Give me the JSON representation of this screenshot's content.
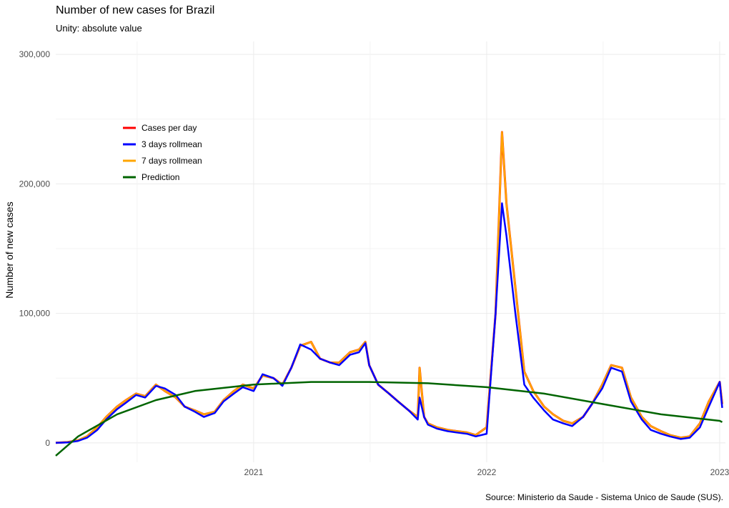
{
  "chart_data": {
    "type": "line",
    "title": "Number of new cases for Brazil",
    "subtitle": "Unity: absolute value",
    "xlabel": "",
    "ylabel": "Number of new cases",
    "caption": "Source: Ministerio da Saude -  Sistema Unico de Saude (SUS).",
    "x_range": [
      "2020-02-26",
      "2023-01-10"
    ],
    "ylim": [
      -15000,
      310000
    ],
    "x_ticks": [
      {
        "date": "2021-01-01",
        "label": "2021"
      },
      {
        "date": "2022-01-01",
        "label": "2022"
      },
      {
        "date": "2023-01-01",
        "label": "2023"
      }
    ],
    "y_ticks": [
      {
        "value": 0,
        "label": "0"
      },
      {
        "value": 100000,
        "label": "100,000"
      },
      {
        "value": 200000,
        "label": "200,000"
      },
      {
        "value": 300000,
        "label": "300,000"
      }
    ],
    "grid": true,
    "legend_position": "top-left",
    "series": [
      {
        "name": "Cases per day",
        "color": "#ff0000",
        "x": [
          "2020-02-26",
          "2020-03-15",
          "2020-04-01",
          "2020-04-15",
          "2020-05-01",
          "2020-05-15",
          "2020-06-01",
          "2020-06-15",
          "2020-07-01",
          "2020-07-15",
          "2020-08-01",
          "2020-08-15",
          "2020-09-01",
          "2020-09-15",
          "2020-10-01",
          "2020-10-15",
          "2020-11-01",
          "2020-11-15",
          "2020-12-01",
          "2020-12-15",
          "2021-01-01",
          "2021-01-15",
          "2021-02-01",
          "2021-02-15",
          "2021-03-01",
          "2021-03-15",
          "2021-04-01",
          "2021-04-15",
          "2021-05-01",
          "2021-05-15",
          "2021-06-01",
          "2021-06-15",
          "2021-06-25",
          "2021-07-01",
          "2021-07-15",
          "2021-08-01",
          "2021-08-15",
          "2021-09-01",
          "2021-09-15",
          "2021-09-18",
          "2021-09-25",
          "2021-10-01",
          "2021-10-15",
          "2021-11-01",
          "2021-11-15",
          "2021-12-01",
          "2021-12-15",
          "2022-01-01",
          "2022-01-15",
          "2022-01-25",
          "2022-02-01",
          "2022-02-15",
          "2022-03-01",
          "2022-03-15",
          "2022-04-01",
          "2022-04-15",
          "2022-05-01",
          "2022-05-15",
          "2022-06-01",
          "2022-06-15",
          "2022-07-01",
          "2022-07-15",
          "2022-08-01",
          "2022-08-15",
          "2022-09-01",
          "2022-09-15",
          "2022-10-01",
          "2022-10-15",
          "2022-11-01",
          "2022-11-15",
          "2022-12-01",
          "2022-12-15",
          "2023-01-01",
          "2023-01-05"
        ],
        "values": [
          0,
          500,
          2000,
          5000,
          12000,
          20000,
          28000,
          33000,
          38000,
          36000,
          45000,
          40000,
          35000,
          28000,
          25000,
          22000,
          24000,
          33000,
          40000,
          45000,
          42000,
          52000,
          50000,
          45000,
          58000,
          75000,
          78000,
          65000,
          62000,
          62000,
          70000,
          72000,
          78000,
          60000,
          45000,
          38000,
          32000,
          25000,
          20000,
          58000,
          20000,
          15000,
          12000,
          10000,
          9000,
          8000,
          6000,
          12000,
          100000,
          240000,
          185000,
          120000,
          55000,
          40000,
          28000,
          22000,
          17000,
          15000,
          20000,
          30000,
          45000,
          60000,
          58000,
          35000,
          20000,
          13000,
          9000,
          6000,
          4000,
          5000,
          15000,
          32000,
          47000,
          30000
        ]
      },
      {
        "name": "3 days rollmean",
        "color": "#0000ff",
        "x": [
          "2020-02-26",
          "2020-03-15",
          "2020-04-01",
          "2020-04-15",
          "2020-05-01",
          "2020-05-15",
          "2020-06-01",
          "2020-06-15",
          "2020-07-01",
          "2020-07-15",
          "2020-08-01",
          "2020-08-15",
          "2020-09-01",
          "2020-09-15",
          "2020-10-01",
          "2020-10-15",
          "2020-11-01",
          "2020-11-15",
          "2020-12-01",
          "2020-12-15",
          "2021-01-01",
          "2021-01-15",
          "2021-02-01",
          "2021-02-15",
          "2021-03-01",
          "2021-03-15",
          "2021-04-01",
          "2021-04-15",
          "2021-05-01",
          "2021-05-15",
          "2021-06-01",
          "2021-06-15",
          "2021-06-25",
          "2021-07-01",
          "2021-07-15",
          "2021-08-01",
          "2021-08-15",
          "2021-09-01",
          "2021-09-15",
          "2021-09-18",
          "2021-09-25",
          "2021-10-01",
          "2021-10-15",
          "2021-11-01",
          "2021-11-15",
          "2021-12-01",
          "2021-12-15",
          "2022-01-01",
          "2022-01-15",
          "2022-01-25",
          "2022-02-01",
          "2022-02-15",
          "2022-03-01",
          "2022-03-15",
          "2022-04-01",
          "2022-04-15",
          "2022-05-01",
          "2022-05-15",
          "2022-06-01",
          "2022-06-15",
          "2022-07-01",
          "2022-07-15",
          "2022-08-01",
          "2022-08-15",
          "2022-09-01",
          "2022-09-15",
          "2022-10-01",
          "2022-10-15",
          "2022-11-01",
          "2022-11-15",
          "2022-12-01",
          "2022-12-15",
          "2023-01-01",
          "2023-01-05"
        ],
        "values": [
          0,
          300,
          1500,
          4000,
          10000,
          18000,
          26000,
          31000,
          37000,
          35000,
          44000,
          42000,
          37000,
          28000,
          24000,
          20000,
          23000,
          32000,
          38000,
          43000,
          40000,
          53000,
          50000,
          44000,
          58000,
          76000,
          72000,
          65000,
          62000,
          60000,
          68000,
          70000,
          77000,
          60000,
          45000,
          38000,
          32000,
          25000,
          18000,
          35000,
          20000,
          14000,
          11000,
          9000,
          8000,
          7000,
          5000,
          7000,
          100000,
          185000,
          160000,
          100000,
          45000,
          35000,
          25000,
          18000,
          15000,
          13000,
          20000,
          30000,
          42000,
          58000,
          55000,
          32000,
          18000,
          10000,
          7000,
          5000,
          3000,
          4000,
          12000,
          28000,
          47000,
          27000
        ]
      },
      {
        "name": "7 days rollmean",
        "color": "#ffa500",
        "x": [
          "2020-02-26",
          "2020-03-15",
          "2020-04-01",
          "2020-04-15",
          "2020-05-01",
          "2020-05-15",
          "2020-06-01",
          "2020-06-15",
          "2020-07-01",
          "2020-07-15",
          "2020-08-01",
          "2020-08-15",
          "2020-09-01",
          "2020-09-15",
          "2020-10-01",
          "2020-10-15",
          "2020-11-01",
          "2020-11-15",
          "2020-12-01",
          "2020-12-15",
          "2021-01-01",
          "2021-01-15",
          "2021-02-01",
          "2021-02-15",
          "2021-03-01",
          "2021-03-15",
          "2021-04-01",
          "2021-04-15",
          "2021-05-01",
          "2021-05-15",
          "2021-06-01",
          "2021-06-15",
          "2021-06-25",
          "2021-07-01",
          "2021-07-15",
          "2021-08-01",
          "2021-08-15",
          "2021-09-01",
          "2021-09-15",
          "2021-09-18",
          "2021-09-25",
          "2021-10-01",
          "2021-10-15",
          "2021-11-01",
          "2021-11-15",
          "2021-12-01",
          "2021-12-15",
          "2022-01-01",
          "2022-01-15",
          "2022-01-25",
          "2022-02-01",
          "2022-02-15",
          "2022-03-01",
          "2022-03-15",
          "2022-04-01",
          "2022-04-15",
          "2022-05-01",
          "2022-05-15",
          "2022-06-01",
          "2022-06-15",
          "2022-07-01",
          "2022-07-15",
          "2022-08-01",
          "2022-08-15",
          "2022-09-01",
          "2022-09-15",
          "2022-10-01",
          "2022-10-15",
          "2022-11-01",
          "2022-11-15",
          "2022-12-01",
          "2022-12-15",
          "2023-01-01",
          "2023-01-05"
        ],
        "values": [
          0,
          500,
          2000,
          5000,
          12000,
          20000,
          28000,
          33000,
          38000,
          36000,
          45000,
          40000,
          35000,
          28000,
          25000,
          22000,
          24000,
          33000,
          40000,
          45000,
          42000,
          52000,
          50000,
          45000,
          58000,
          75000,
          78000,
          65000,
          62000,
          62000,
          70000,
          72000,
          78000,
          60000,
          45000,
          38000,
          32000,
          25000,
          20000,
          58000,
          20000,
          15000,
          12000,
          10000,
          9000,
          8000,
          6000,
          12000,
          100000,
          240000,
          185000,
          120000,
          55000,
          40000,
          28000,
          22000,
          17000,
          15000,
          20000,
          30000,
          45000,
          60000,
          58000,
          35000,
          20000,
          13000,
          9000,
          6000,
          4000,
          5000,
          15000,
          32000,
          47000,
          30000
        ]
      },
      {
        "name": "Prediction",
        "color": "#006400",
        "x": [
          "2020-02-26",
          "2020-04-01",
          "2020-06-01",
          "2020-08-01",
          "2020-10-01",
          "2021-01-01",
          "2021-04-01",
          "2021-07-01",
          "2021-10-01",
          "2022-01-01",
          "2022-04-01",
          "2022-07-01",
          "2022-10-01",
          "2023-01-01",
          "2023-01-05"
        ],
        "values": [
          -10000,
          5000,
          22000,
          33000,
          40000,
          45000,
          47000,
          47000,
          46000,
          43000,
          38000,
          30000,
          22000,
          17000,
          16000
        ]
      }
    ]
  }
}
